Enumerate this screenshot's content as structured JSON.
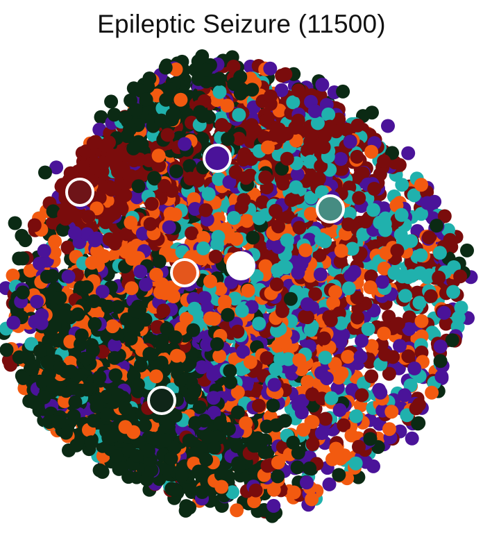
{
  "chart_data": {
    "type": "scatter",
    "title": "Epileptic Seizure (11500)",
    "xlabel": "",
    "ylabel": "",
    "axes_visible": false,
    "grid": false,
    "legend": "none",
    "series": [
      {
        "color": "#0b2a14",
        "cluster_count": 2
      },
      {
        "color": "#7a0c0c",
        "cluster_count": 2
      },
      {
        "color": "#4a1399",
        "cluster_count": 1
      },
      {
        "color": "#20b1ad",
        "cluster_count": 1
      },
      {
        "color": "#f25a10",
        "cluster_count": 1
      }
    ],
    "centroids": [
      {
        "color": "#6e1418",
        "outline": "#ffffff"
      },
      {
        "color": "#4a1399",
        "outline": "#ffffff"
      },
      {
        "color": "#468c82",
        "outline": "#ffffff"
      },
      {
        "color": "#e4561c",
        "outline": "#ffffff"
      },
      {
        "color": "#ffffff",
        "outline": "#ffffff"
      },
      {
        "color": "#0f2518",
        "outline": "#ffffff"
      }
    ]
  }
}
